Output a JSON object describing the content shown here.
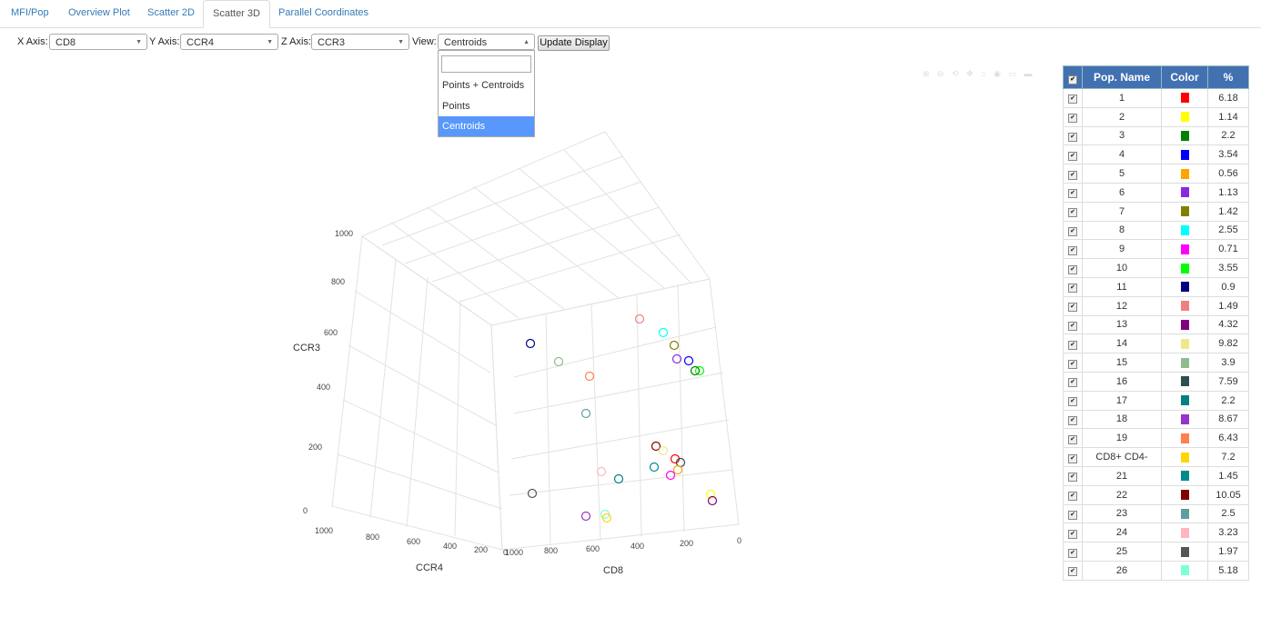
{
  "tabs": [
    "MFI/Pop",
    "Overview Plot",
    "Scatter 2D",
    "Scatter 3D",
    "Parallel Coordinates"
  ],
  "controls": {
    "x_label": "X Axis:",
    "x_value": "CD8",
    "y_label": "Y Axis:",
    "y_value": "CCR4",
    "z_label": "Z Axis:",
    "z_value": "CCR3",
    "view_label": "View:",
    "view_value": "Centroids",
    "update_button": "Update Display",
    "view_options": [
      "Points + Centroids",
      "Points",
      "Centroids"
    ]
  },
  "table": {
    "headers": [
      "Pop. Name",
      "Color",
      "%"
    ],
    "rows": [
      {
        "name": "1",
        "color": "#ff0000",
        "pct": "6.18"
      },
      {
        "name": "2",
        "color": "#ffff00",
        "pct": "1.14"
      },
      {
        "name": "3",
        "color": "#008000",
        "pct": "2.2"
      },
      {
        "name": "4",
        "color": "#0000ff",
        "pct": "3.54"
      },
      {
        "name": "5",
        "color": "#ffa500",
        "pct": "0.56"
      },
      {
        "name": "6",
        "color": "#8a2be2",
        "pct": "1.13"
      },
      {
        "name": "7",
        "color": "#808000",
        "pct": "1.42"
      },
      {
        "name": "8",
        "color": "#00ffff",
        "pct": "2.55"
      },
      {
        "name": "9",
        "color": "#ff00ff",
        "pct": "0.71"
      },
      {
        "name": "10",
        "color": "#00ff00",
        "pct": "3.55"
      },
      {
        "name": "11",
        "color": "#000080",
        "pct": "0.9"
      },
      {
        "name": "12",
        "color": "#f08080",
        "pct": "1.49"
      },
      {
        "name": "13",
        "color": "#800080",
        "pct": "4.32"
      },
      {
        "name": "14",
        "color": "#f0e68c",
        "pct": "9.82"
      },
      {
        "name": "15",
        "color": "#8fbc8f",
        "pct": "3.9"
      },
      {
        "name": "16",
        "color": "#2f4f4f",
        "pct": "7.59"
      },
      {
        "name": "17",
        "color": "#008080",
        "pct": "2.2"
      },
      {
        "name": "18",
        "color": "#9932cc",
        "pct": "8.67"
      },
      {
        "name": "19",
        "color": "#ff7f50",
        "pct": "6.43"
      },
      {
        "name": "CD8+ CD4-",
        "color": "#ffd700",
        "pct": "7.2"
      },
      {
        "name": "21",
        "color": "#008b8b",
        "pct": "1.45"
      },
      {
        "name": "22",
        "color": "#800000",
        "pct": "10.05"
      },
      {
        "name": "23",
        "color": "#5f9ea0",
        "pct": "2.5"
      },
      {
        "name": "24",
        "color": "#ffb6c1",
        "pct": "3.23"
      },
      {
        "name": "25",
        "color": "#555555",
        "pct": "1.97"
      },
      {
        "name": "26",
        "color": "#7fffd4",
        "pct": "5.18"
      }
    ]
  },
  "chart_data": {
    "type": "scatter",
    "xlabel": "CD8",
    "ylabel": "CCR4",
    "zlabel": "CCR3",
    "x_ticks": [
      "0",
      "200",
      "400",
      "600",
      "800",
      "1000"
    ],
    "y_ticks": [
      "0",
      "200",
      "400",
      "600",
      "800",
      "1000"
    ],
    "z_ticks": [
      "0",
      "200",
      "400",
      "600",
      "800",
      "1000"
    ],
    "marker": "open-circle"
  }
}
